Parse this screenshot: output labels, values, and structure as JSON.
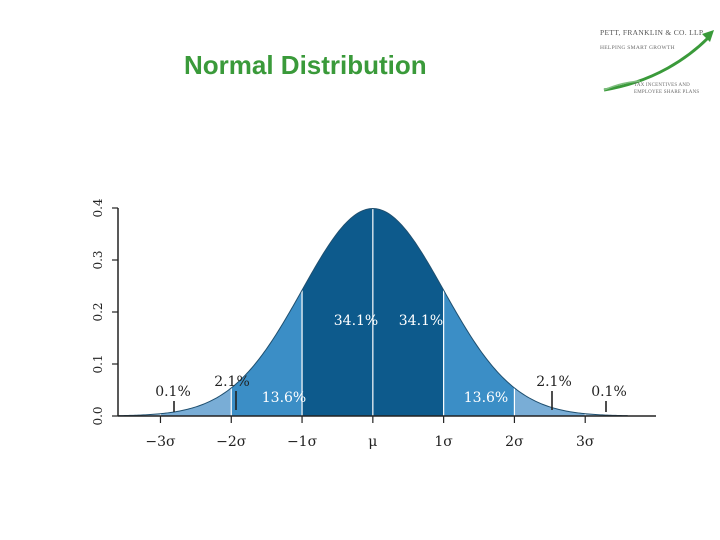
{
  "title": "Normal Distribution",
  "logo": {
    "name": "PETT, FRANKLIN & CO. LLP",
    "tagline": "HELPING SMART GROWTH",
    "subtitle": "TAX INCENTIVES AND EMPLOYEE SHARE PLANS",
    "colors": {
      "arrow": "#3a9a3a",
      "text": "#555555"
    }
  },
  "chart_data": {
    "type": "area",
    "distribution": "normal",
    "title": "",
    "xlabel": "",
    "ylabel": "",
    "xlim": [
      -3.6,
      4.0
    ],
    "ylim": [
      0,
      0.4
    ],
    "y_ticks": [
      "0.0",
      "0.1",
      "0.2",
      "0.3",
      "0.4"
    ],
    "x_ticks": [
      {
        "value": -3,
        "label": "−3σ"
      },
      {
        "value": -2,
        "label": "−2σ"
      },
      {
        "value": -1,
        "label": "−1σ"
      },
      {
        "value": 0,
        "label": "μ"
      },
      {
        "value": 1,
        "label": "1σ"
      },
      {
        "value": 2,
        "label": "2σ"
      },
      {
        "value": 3,
        "label": "3σ"
      }
    ],
    "regions": [
      {
        "from": -4,
        "to": -3,
        "percent": "0.1%"
      },
      {
        "from": -3,
        "to": -2,
        "percent": "2.1%"
      },
      {
        "from": -2,
        "to": -1,
        "percent": "13.6%"
      },
      {
        "from": -1,
        "to": 0,
        "percent": "34.1%"
      },
      {
        "from": 0,
        "to": 1,
        "percent": "34.1%"
      },
      {
        "from": 1,
        "to": 2,
        "percent": "13.6%"
      },
      {
        "from": 2,
        "to": 3,
        "percent": "2.1%"
      },
      {
        "from": 3,
        "to": 4,
        "percent": "0.1%"
      }
    ],
    "colors": {
      "sigma1": "#0d5a8c",
      "sigma2": "#3b8ec6",
      "sigma3": "#79add6",
      "sigma4": "#a9cbe6",
      "divider": "#ffffff",
      "axis": "#222222"
    }
  }
}
